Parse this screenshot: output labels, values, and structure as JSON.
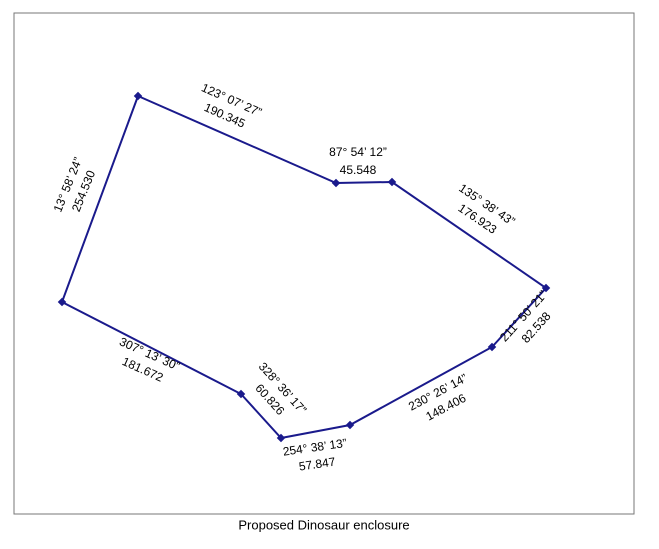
{
  "caption": "Proposed Dinosaur enclosure",
  "sides": [
    {
      "bearing": "123° 07’ 27”",
      "distance": "190.345"
    },
    {
      "bearing": "87° 54’ 12”",
      "distance": "45.548"
    },
    {
      "bearing": "135° 38’ 43”",
      "distance": "176.923"
    },
    {
      "bearing": "211° 50’ 21”",
      "distance": "82.538"
    },
    {
      "bearing": "230° 26’ 14”",
      "distance": "148.406"
    },
    {
      "bearing": "254° 38’ 13”",
      "distance": "57.847"
    },
    {
      "bearing": "328° 36’ 17”",
      "distance": "60.826"
    },
    {
      "bearing": "307° 13’ 30”",
      "distance": "181.672"
    },
    {
      "bearing": "13° 58’ 24”",
      "distance": "254.530"
    }
  ]
}
